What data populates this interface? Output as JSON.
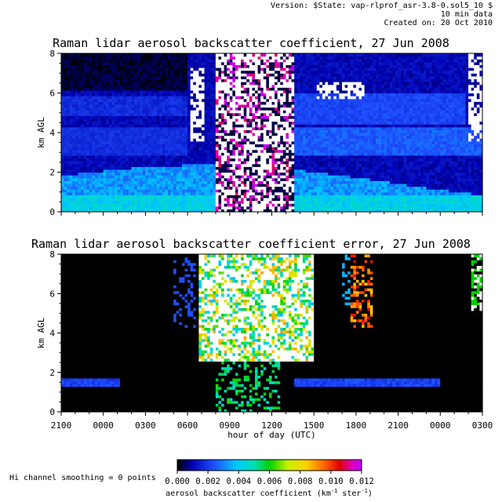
{
  "header": {
    "version": "Version: $State: vap-rlprof_asr-3.8-0.sol5_10 $",
    "cadence": "10 min data",
    "created": "Created on: 20 Oct 2010"
  },
  "footer": {
    "smoothing": "Hi channel smoothing = 0 points",
    "colorbar_ticks": [
      "0.000",
      "0.002",
      "0.004",
      "0.006",
      "0.008",
      "0.010",
      "0.012"
    ],
    "colorbar_label": "aerosol backscatter coefficient (km",
    "colorbar_label_sup1": "-1",
    "colorbar_label_mid": " ster",
    "colorbar_label_sup2": "-1",
    "colorbar_label_end": ")",
    "colorbar_range": [
      0.0,
      0.012
    ]
  },
  "chart_data": [
    {
      "type": "heatmap",
      "title": "Raman lidar aerosol backscatter coefficient, 27 Jun 2008",
      "ylabel": "km AGL",
      "ylim": [
        0,
        8
      ],
      "yticks": [
        "0",
        "2",
        "4",
        "6",
        "8"
      ],
      "colormap": "rainbow (black-blue-cyan-green-yellow-red-magenta), white = saturated"
    },
    {
      "type": "heatmap",
      "title": "Raman lidar aerosol backscatter coefficient error, 27 Jun 2008",
      "ylabel": "km AGL",
      "ylim": [
        0,
        8
      ],
      "yticks": [
        "0",
        "2",
        "4",
        "6",
        "8"
      ],
      "xlabel": "hour of day (UTC)",
      "xticks": [
        "2100",
        "0000",
        "0300",
        "0600",
        "0900",
        "1200",
        "1500",
        "1800",
        "2100",
        "0000",
        "0300"
      ]
    }
  ]
}
